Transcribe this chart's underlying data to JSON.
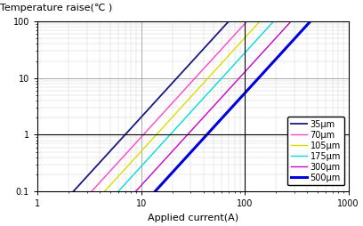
{
  "title": "Temperature raise(℃ )",
  "xlabel": "Applied current(A)",
  "xlim": [
    1,
    1000
  ],
  "ylim": [
    0.1,
    100
  ],
  "series": [
    {
      "label": "35μm",
      "color": "#1a1a7e",
      "linewidth": 1.3,
      "ref_x": 7.0,
      "ref_y": 1.0,
      "exponent": 2.0
    },
    {
      "label": "70μm",
      "color": "#ff44cc",
      "linewidth": 1.0,
      "ref_x": 10.5,
      "ref_y": 1.0,
      "exponent": 2.0
    },
    {
      "label": "105μm",
      "color": "#dddd00",
      "linewidth": 1.0,
      "ref_x": 14.0,
      "ref_y": 1.0,
      "exponent": 2.0
    },
    {
      "label": "175μm",
      "color": "#00dddd",
      "linewidth": 1.0,
      "ref_x": 19.0,
      "ref_y": 1.0,
      "exponent": 2.0
    },
    {
      "label": "300μm",
      "color": "#cc00cc",
      "linewidth": 1.0,
      "ref_x": 28.0,
      "ref_y": 1.0,
      "exponent": 2.0
    },
    {
      "label": "500μm",
      "color": "#0000dd",
      "linewidth": 2.2,
      "ref_x": 43.0,
      "ref_y": 1.0,
      "exponent": 2.0
    }
  ],
  "grid_major_color": "#999999",
  "grid_minor_color": "#cccccc",
  "bg_color": "#ffffff",
  "axis_label_fontsize": 8,
  "tick_fontsize": 7,
  "legend_fontsize": 7,
  "title_fontsize": 8
}
